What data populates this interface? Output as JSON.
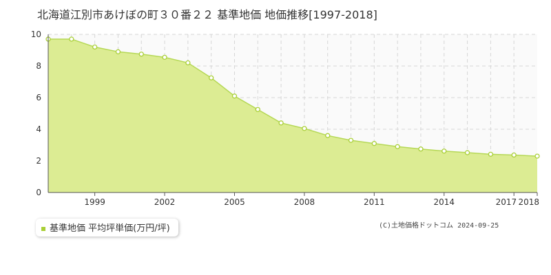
{
  "title": "北海道江別市あけぼの町３０番２２ 基準地価 地価推移[1997-2018]",
  "legend_label": "基準地価 平均坪単価(万円/坪)",
  "credit": "(C)土地価格ドットコム 2024-09-25",
  "colors": {
    "fill": "#dcec93",
    "line": "#b5d855",
    "marker_stroke": "#a9cf36",
    "grid": "#d6d6d6",
    "axis": "#555555"
  },
  "chart_data": {
    "type": "area",
    "title": "北海道江別市あけぼの町３０番２２ 基準地価 地価推移[1997-2018]",
    "xlabel": "",
    "ylabel": "",
    "x": [
      1997,
      1998,
      1999,
      2000,
      2001,
      2002,
      2003,
      2004,
      2005,
      2006,
      2007,
      2008,
      2009,
      2010,
      2011,
      2012,
      2013,
      2014,
      2015,
      2016,
      2017,
      2018
    ],
    "x_tick_labels": [
      "1999",
      "2002",
      "2005",
      "2008",
      "2011",
      "2014",
      "2017",
      "2018"
    ],
    "ylim": [
      0,
      10
    ],
    "y_ticks": [
      0,
      2,
      4,
      6,
      8,
      10
    ],
    "grid": true,
    "legend_position": "bottom-left",
    "series": [
      {
        "name": "基準地価 平均坪単価(万円/坪)",
        "values": [
          9.7,
          9.7,
          9.2,
          8.9,
          8.75,
          8.55,
          8.2,
          7.25,
          6.1,
          5.25,
          4.4,
          4.05,
          3.6,
          3.3,
          3.1,
          2.9,
          2.75,
          2.62,
          2.52,
          2.42,
          2.37,
          2.3
        ]
      }
    ]
  }
}
